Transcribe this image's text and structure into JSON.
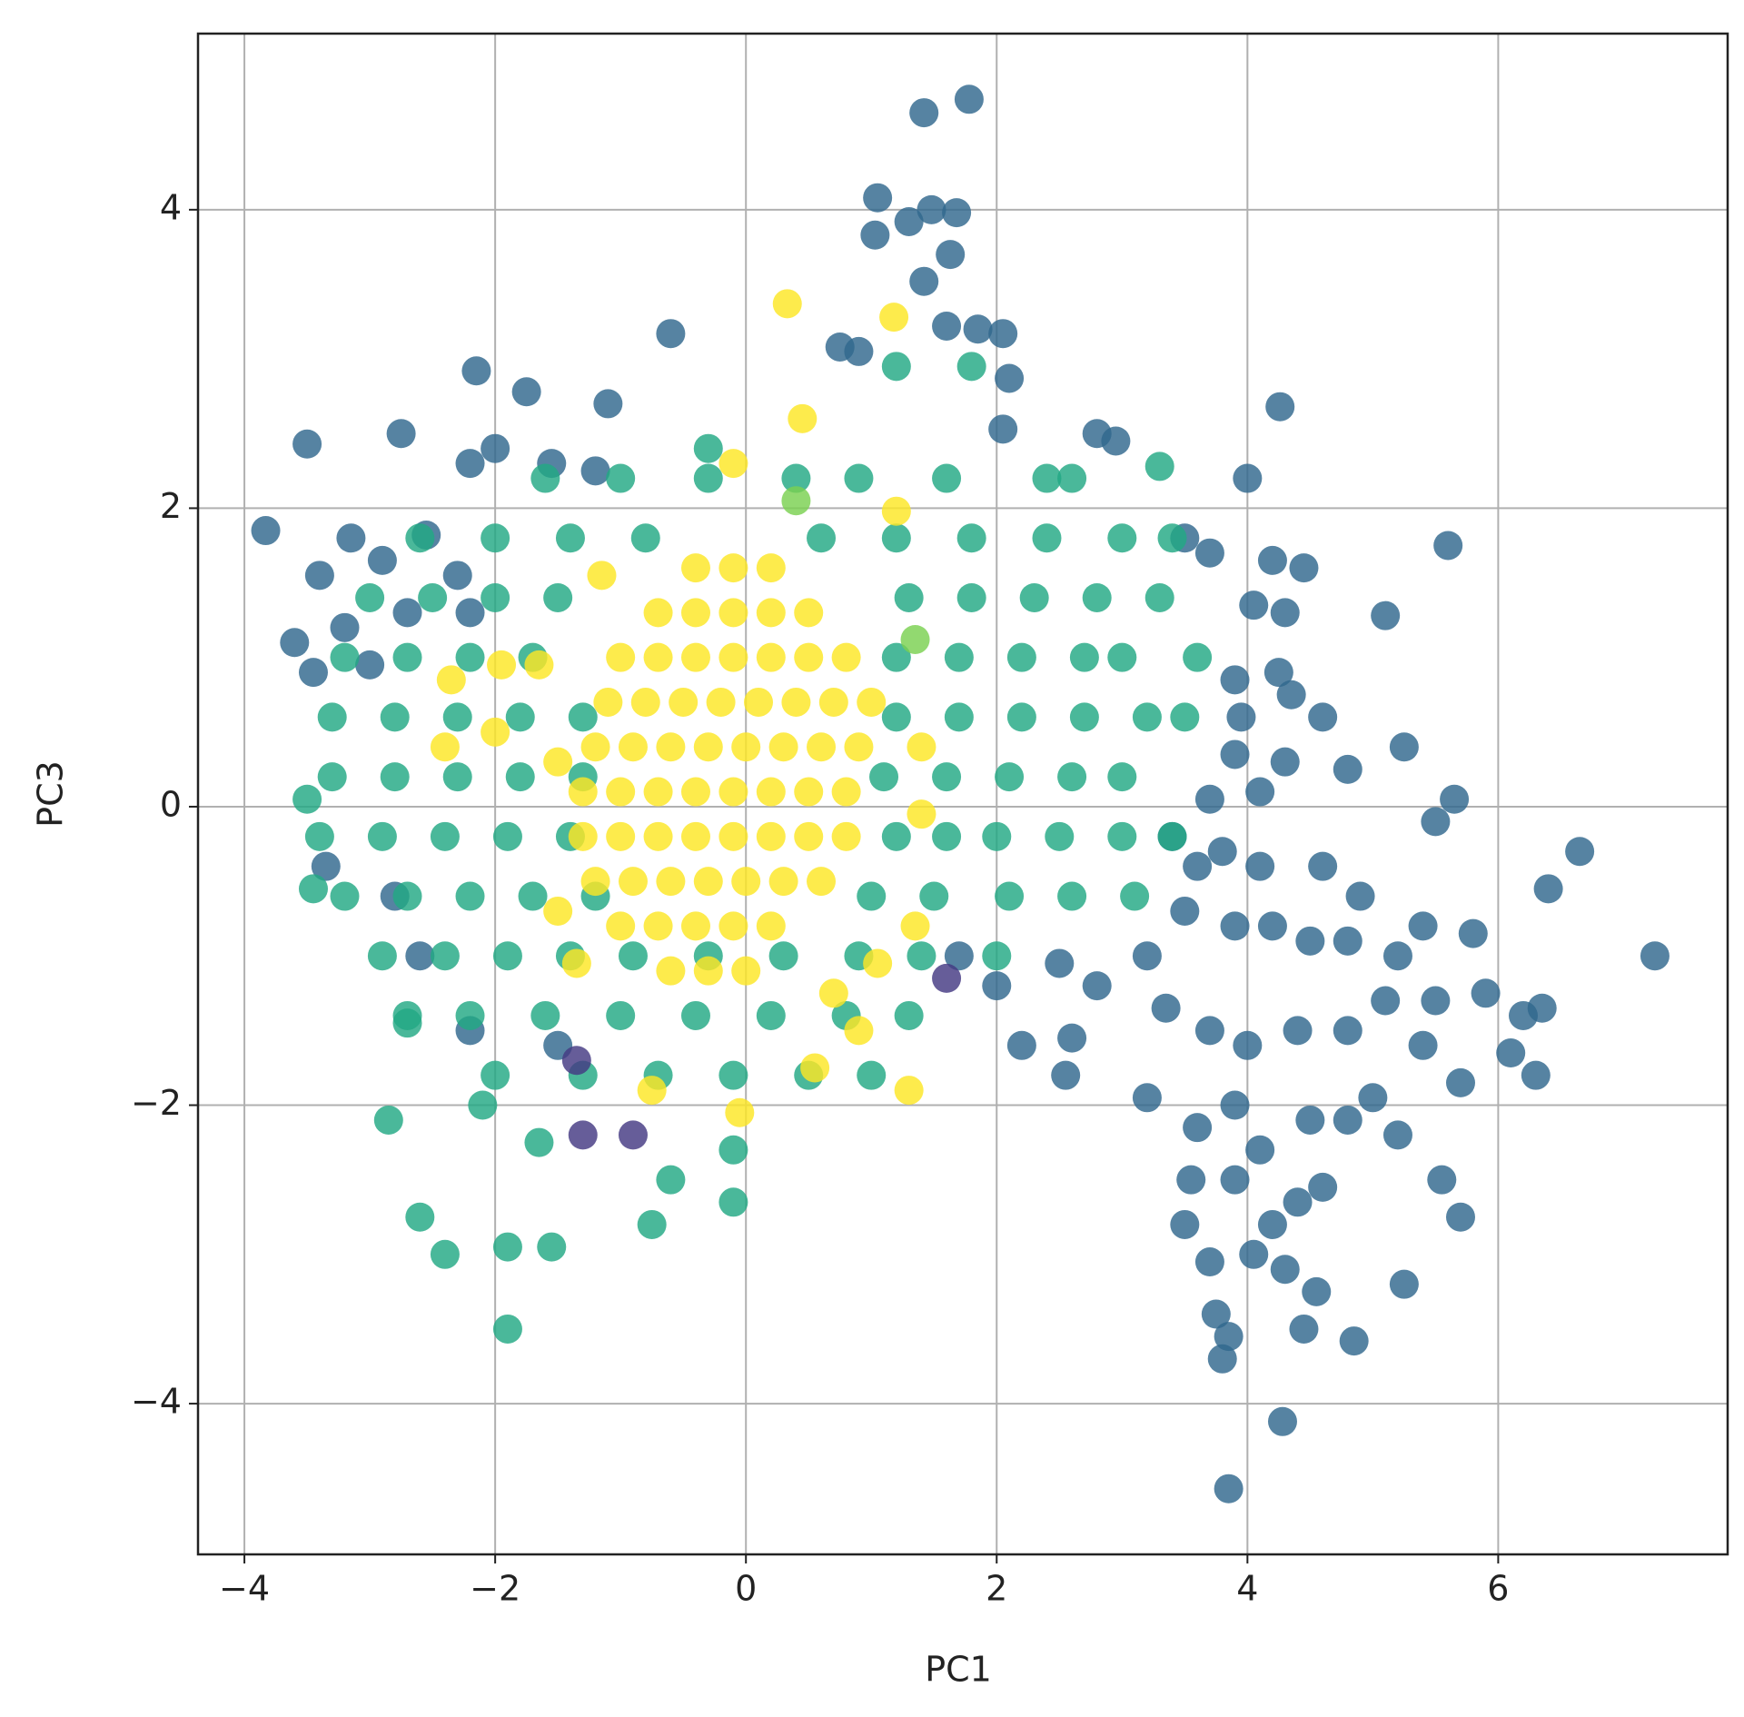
{
  "chart_data": {
    "type": "scatter",
    "xlabel": "PC1",
    "ylabel": "PC3",
    "xlim": [
      -4.37,
      7.83
    ],
    "ylim": [
      -5.01,
      5.18
    ],
    "xticks": [
      {
        "value": -4,
        "label": "−4"
      },
      {
        "value": -2,
        "label": "−2"
      },
      0,
      2,
      4,
      6
    ],
    "yticks": [
      {
        "value": -4,
        "label": "−4"
      },
      {
        "value": -2,
        "label": "−2"
      },
      0,
      2,
      4
    ],
    "grid": true,
    "series": [
      {
        "color": "#31688e",
        "x": [
          1.78,
          1.42,
          1.05,
          1.48,
          1.68,
          1.03,
          1.3,
          1.63,
          1.42,
          -0.6,
          0.75,
          0.9,
          1.6,
          1.85,
          2.05,
          2.1,
          2.05,
          4.26,
          -2.15,
          -1.75,
          -1.1,
          -3.5,
          -2.75,
          -2.2,
          -2.0,
          -1.55,
          -1.2,
          4.0,
          2.8,
          2.95,
          -3.83,
          -3.15,
          -2.55,
          -3.4,
          -2.9,
          -2.3,
          -3.6,
          -3.45,
          -3.2,
          -2.7,
          -3.0,
          -2.2,
          3.5,
          3.7,
          4.2,
          4.45,
          5.6,
          5.1,
          4.05,
          4.3,
          3.9,
          4.25,
          4.35,
          4.6,
          3.95,
          3.9,
          4.3,
          4.1,
          3.7,
          4.8,
          5.25,
          5.65,
          5.5,
          3.4,
          3.6,
          3.8,
          4.1,
          4.6,
          4.9,
          5.4,
          5.8,
          6.65,
          6.4,
          7.25,
          3.5,
          3.9,
          4.2,
          4.5,
          4.8,
          5.2,
          5.5,
          5.9,
          6.2,
          6.35,
          3.2,
          2.8,
          2.5,
          2.0,
          1.7,
          3.35,
          3.7,
          4.0,
          4.4,
          4.8,
          5.1,
          5.4,
          5.7,
          6.1,
          6.3,
          2.6,
          2.2,
          3.2,
          3.6,
          3.9,
          4.1,
          4.5,
          4.8,
          5.0,
          5.2,
          3.55,
          3.9,
          4.2,
          4.4,
          4.6,
          5.55,
          5.7,
          3.5,
          3.7,
          4.05,
          4.3,
          4.55,
          5.25,
          3.75,
          3.85,
          4.45,
          4.85,
          3.8,
          4.28,
          3.85,
          -3.35,
          -2.8,
          -2.6,
          -2.2,
          -1.5,
          2.55
        ],
        "y": [
          4.74,
          4.65,
          4.08,
          4.0,
          3.98,
          3.83,
          3.92,
          3.7,
          3.52,
          3.17,
          3.08,
          3.05,
          3.22,
          3.2,
          3.17,
          2.87,
          2.53,
          2.68,
          2.92,
          2.78,
          2.7,
          2.43,
          2.5,
          2.3,
          2.4,
          2.3,
          2.25,
          2.2,
          2.5,
          2.45,
          1.85,
          1.8,
          1.82,
          1.55,
          1.65,
          1.55,
          1.1,
          0.9,
          1.2,
          1.3,
          0.95,
          1.3,
          1.8,
          1.7,
          1.65,
          1.6,
          1.75,
          1.28,
          1.35,
          1.3,
          0.85,
          0.9,
          0.75,
          0.6,
          0.6,
          0.35,
          0.3,
          0.1,
          0.05,
          0.25,
          0.4,
          0.05,
          -0.1,
          -0.2,
          -0.4,
          -0.3,
          -0.4,
          -0.4,
          -0.6,
          -0.8,
          -0.85,
          -0.3,
          -0.55,
          -1.0,
          -0.7,
          -0.8,
          -0.8,
          -0.9,
          -0.9,
          -1.0,
          -1.3,
          -1.25,
          -1.4,
          -1.35,
          -1.0,
          -1.2,
          -1.05,
          -1.2,
          -1.0,
          -1.35,
          -1.5,
          -1.6,
          -1.5,
          -1.5,
          -1.3,
          -1.6,
          -1.85,
          -1.65,
          -1.8,
          -1.55,
          -1.6,
          -1.95,
          -2.15,
          -2.0,
          -2.3,
          -2.1,
          -2.1,
          -1.95,
          -2.2,
          -2.5,
          -2.5,
          -2.8,
          -2.65,
          -2.55,
          -2.5,
          -2.75,
          -2.8,
          -3.05,
          -3.0,
          -3.1,
          -3.25,
          -3.2,
          -3.4,
          -3.55,
          -3.5,
          -3.58,
          -3.7,
          -4.12,
          -4.57,
          -0.4,
          -0.6,
          -1.0,
          -1.5,
          -1.6,
          -1.8
        ]
      },
      {
        "color": "#22a884",
        "x": [
          -1.6,
          -1.0,
          -0.3,
          0.4,
          0.9,
          1.6,
          2.4,
          -2.6,
          -2.0,
          -1.4,
          -0.8,
          0.6,
          1.2,
          1.8,
          2.4,
          3.0,
          3.4,
          -3.0,
          -2.5,
          -2.0,
          -1.5,
          1.3,
          1.8,
          2.3,
          2.8,
          3.3,
          -3.2,
          -2.7,
          -2.2,
          -1.7,
          1.2,
          1.7,
          2.2,
          2.7,
          3.0,
          3.6,
          -3.3,
          -2.8,
          -2.3,
          -1.8,
          -1.3,
          1.2,
          1.7,
          2.2,
          2.7,
          3.2,
          3.5,
          -3.3,
          -2.8,
          -2.3,
          -1.8,
          -1.3,
          1.1,
          1.6,
          2.1,
          2.6,
          3.0,
          -3.4,
          -2.9,
          -2.4,
          -1.9,
          -1.4,
          1.2,
          1.6,
          2.0,
          2.5,
          3.0,
          3.4,
          -3.2,
          -2.7,
          -2.2,
          -1.7,
          -1.2,
          1.0,
          1.5,
          2.1,
          2.6,
          3.1,
          -2.9,
          -2.4,
          -1.9,
          -1.4,
          -0.9,
          -0.3,
          0.3,
          0.9,
          1.4,
          2.0,
          -2.7,
          -2.2,
          -1.6,
          -1.0,
          -0.4,
          0.2,
          0.8,
          1.3,
          -2.0,
          -1.3,
          -0.7,
          -0.1,
          0.5,
          1.0,
          -2.1,
          -2.85,
          -1.65,
          -2.6,
          -2.4,
          -1.9,
          -1.55,
          -1.9,
          -0.6,
          -0.1,
          -0.75,
          -0.1,
          -2.7,
          -3.5,
          -3.45,
          3.3,
          2.6,
          -0.3,
          1.8,
          1.2
        ],
        "y": [
          2.2,
          2.2,
          2.2,
          2.2,
          2.2,
          2.2,
          2.2,
          1.8,
          1.8,
          1.8,
          1.8,
          1.8,
          1.8,
          1.8,
          1.8,
          1.8,
          1.8,
          1.4,
          1.4,
          1.4,
          1.4,
          1.4,
          1.4,
          1.4,
          1.4,
          1.4,
          1.0,
          1.0,
          1.0,
          1.0,
          1.0,
          1.0,
          1.0,
          1.0,
          1.0,
          1.0,
          0.6,
          0.6,
          0.6,
          0.6,
          0.6,
          0.6,
          0.6,
          0.6,
          0.6,
          0.6,
          0.6,
          0.2,
          0.2,
          0.2,
          0.2,
          0.2,
          0.2,
          0.2,
          0.2,
          0.2,
          0.2,
          -0.2,
          -0.2,
          -0.2,
          -0.2,
          -0.2,
          -0.2,
          -0.2,
          -0.2,
          -0.2,
          -0.2,
          -0.2,
          -0.6,
          -0.6,
          -0.6,
          -0.6,
          -0.6,
          -0.6,
          -0.6,
          -0.6,
          -0.6,
          -0.6,
          -1.0,
          -1.0,
          -1.0,
          -1.0,
          -1.0,
          -1.0,
          -1.0,
          -1.0,
          -1.0,
          -1.0,
          -1.4,
          -1.4,
          -1.4,
          -1.4,
          -1.4,
          -1.4,
          -1.4,
          -1.4,
          -1.8,
          -1.8,
          -1.8,
          -1.8,
          -1.8,
          -1.8,
          -2.0,
          -2.1,
          -2.25,
          -2.75,
          -3.0,
          -2.95,
          -2.95,
          -3.5,
          -2.5,
          -2.65,
          -2.8,
          -2.3,
          -1.45,
          0.05,
          -0.55,
          2.28,
          2.2,
          2.4,
          2.95,
          2.95
        ]
      },
      {
        "color": "#fde725",
        "x": [
          -0.4,
          -0.1,
          0.2,
          -0.7,
          -0.4,
          -0.1,
          0.2,
          0.5,
          -1.0,
          -0.7,
          -0.4,
          -0.1,
          0.2,
          0.5,
          0.8,
          -1.1,
          -0.8,
          -0.5,
          -0.2,
          0.1,
          0.4,
          0.7,
          1.0,
          -1.2,
          -0.9,
          -0.6,
          -0.3,
          0.0,
          0.3,
          0.6,
          0.9,
          -1.3,
          -1.0,
          -0.7,
          -0.4,
          -0.1,
          0.2,
          0.5,
          0.8,
          -1.3,
          -1.0,
          -0.7,
          -0.4,
          -0.1,
          0.2,
          0.5,
          0.8,
          -1.2,
          -0.9,
          -0.6,
          -0.3,
          0.0,
          0.3,
          0.6,
          -1.0,
          -0.7,
          -0.4,
          -0.1,
          0.2,
          -0.6,
          -0.3,
          0.0,
          0.33,
          1.18,
          0.45,
          -0.1,
          1.2,
          -1.15,
          -1.95,
          -2.35,
          -1.65,
          -2.0,
          -2.4,
          -1.5,
          0.9,
          0.55,
          1.3,
          -0.75,
          -0.05,
          1.05,
          0.7,
          1.35,
          1.4,
          1.4,
          -1.5,
          -1.35
        ],
        "y": [
          1.6,
          1.6,
          1.6,
          1.3,
          1.3,
          1.3,
          1.3,
          1.3,
          1.0,
          1.0,
          1.0,
          1.0,
          1.0,
          1.0,
          1.0,
          0.7,
          0.7,
          0.7,
          0.7,
          0.7,
          0.7,
          0.7,
          0.7,
          0.4,
          0.4,
          0.4,
          0.4,
          0.4,
          0.4,
          0.4,
          0.4,
          0.1,
          0.1,
          0.1,
          0.1,
          0.1,
          0.1,
          0.1,
          0.1,
          -0.2,
          -0.2,
          -0.2,
          -0.2,
          -0.2,
          -0.2,
          -0.2,
          -0.2,
          -0.5,
          -0.5,
          -0.5,
          -0.5,
          -0.5,
          -0.5,
          -0.5,
          -0.8,
          -0.8,
          -0.8,
          -0.8,
          -0.8,
          -1.1,
          -1.1,
          -1.1,
          3.37,
          3.28,
          2.6,
          2.3,
          1.98,
          1.55,
          0.95,
          0.85,
          0.95,
          0.5,
          0.4,
          0.3,
          -1.5,
          -1.75,
          -1.9,
          -1.9,
          -2.05,
          -1.05,
          -1.25,
          -0.8,
          0.4,
          -0.05,
          -0.7,
          -1.05
        ]
      },
      {
        "color": "#443983",
        "x": [
          -1.3,
          -0.9,
          -1.35,
          1.6
        ],
        "y": [
          -2.2,
          -2.2,
          -1.7,
          -1.15
        ]
      },
      {
        "color": "#7ad151",
        "x": [
          1.35,
          0.4
        ],
        "y": [
          1.12,
          2.05
        ]
      }
    ]
  }
}
